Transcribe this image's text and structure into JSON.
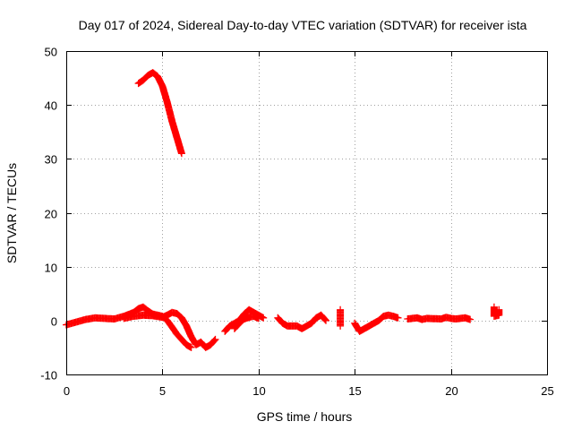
{
  "chart_data": {
    "type": "scatter",
    "title": "Day 017 of 2024, Sidereal Day-to-day VTEC variation (SDTVAR) for receiver ista",
    "xlabel": "GPS time / hours",
    "ylabel": "SDTVAR / TECUs",
    "xlim": [
      0,
      25
    ],
    "ylim": [
      -10,
      50
    ],
    "xticks": [
      "0",
      "5",
      "10",
      "15",
      "20",
      "25"
    ],
    "yticks": [
      "-10",
      "0",
      "10",
      "20",
      "30",
      "40",
      "50"
    ],
    "grid": true,
    "marker": "+",
    "color": "#ff0000",
    "series": [
      {
        "name": "track-high",
        "segments": [
          [
            [
              3.75,
              44.0
            ],
            [
              4.0,
              44.6
            ],
            [
              4.25,
              45.5
            ],
            [
              4.5,
              46.0
            ],
            [
              4.75,
              45.3
            ],
            [
              5.0,
              43.5
            ],
            [
              5.25,
              40.5
            ],
            [
              5.5,
              37.0
            ],
            [
              5.75,
              34.0
            ],
            [
              6.0,
              31.0
            ]
          ]
        ]
      },
      {
        "name": "track-a",
        "segments": [
          [
            [
              0.0,
              -0.8
            ],
            [
              0.5,
              -0.3
            ],
            [
              1.0,
              0.2
            ],
            [
              1.5,
              0.5
            ],
            [
              2.0,
              0.4
            ],
            [
              2.5,
              0.3
            ],
            [
              3.0,
              0.8
            ],
            [
              3.5,
              1.5
            ],
            [
              3.75,
              2.2
            ],
            [
              4.0,
              2.5
            ],
            [
              4.25,
              1.8
            ],
            [
              4.5,
              1.2
            ],
            [
              4.75,
              1.0
            ],
            [
              5.0,
              0.8
            ],
            [
              5.25,
              0.0
            ],
            [
              5.5,
              -1.2
            ],
            [
              5.75,
              -2.5
            ],
            [
              6.0,
              -3.5
            ],
            [
              6.25,
              -4.5
            ],
            [
              6.5,
              -5.0
            ]
          ]
        ]
      },
      {
        "name": "track-b",
        "segments": [
          [
            [
              3.0,
              0.4
            ],
            [
              3.5,
              0.8
            ],
            [
              4.0,
              1.0
            ],
            [
              4.5,
              0.9
            ],
            [
              5.0,
              0.6
            ],
            [
              5.25,
              1.0
            ],
            [
              5.5,
              1.5
            ],
            [
              5.75,
              1.3
            ],
            [
              6.0,
              0.5
            ],
            [
              6.25,
              -1.0
            ],
            [
              6.5,
              -3.0
            ],
            [
              6.75,
              -4.5
            ],
            [
              7.0,
              -4.0
            ],
            [
              7.25,
              -5.0
            ],
            [
              7.5,
              -4.5
            ],
            [
              7.75,
              -3.5
            ]
          ],
          [
            [
              8.25,
              -2.0
            ],
            [
              8.5,
              -1.0
            ],
            [
              9.0,
              0.0
            ],
            [
              9.25,
              1.2
            ],
            [
              9.5,
              2.0
            ],
            [
              9.75,
              1.5
            ],
            [
              10.0,
              1.0
            ],
            [
              10.25,
              0.5
            ]
          ]
        ]
      },
      {
        "name": "track-c",
        "segments": [
          [
            [
              8.75,
              -1.5
            ],
            [
              9.0,
              -0.5
            ],
            [
              9.25,
              0.3
            ],
            [
              9.5,
              0.6
            ],
            [
              9.75,
              0.8
            ],
            [
              10.0,
              0.4
            ]
          ],
          [
            [
              11.0,
              0.5
            ],
            [
              11.25,
              -0.5
            ],
            [
              11.5,
              -1.0
            ],
            [
              12.0,
              -1.0
            ],
            [
              12.25,
              -1.5
            ],
            [
              12.5,
              -1.0
            ],
            [
              12.75,
              -0.5
            ],
            [
              13.0,
              0.5
            ],
            [
              13.25,
              1.0
            ],
            [
              13.5,
              0.0
            ]
          ],
          [
            [
              14.25,
              2.0
            ],
            [
              14.25,
              -1.0
            ]
          ],
          [
            [
              15.0,
              -0.5
            ],
            [
              15.25,
              -2.0
            ],
            [
              15.5,
              -1.5
            ],
            [
              15.75,
              -1.0
            ],
            [
              16.0,
              -0.5
            ],
            [
              16.25,
              0.0
            ],
            [
              16.5,
              0.8
            ],
            [
              16.75,
              1.0
            ],
            [
              17.0,
              0.8
            ],
            [
              17.25,
              0.5
            ]
          ],
          [
            [
              17.75,
              0.3
            ],
            [
              18.25,
              0.5
            ],
            [
              18.5,
              0.2
            ],
            [
              18.75,
              0.4
            ],
            [
              19.5,
              0.3
            ],
            [
              19.75,
              0.6
            ],
            [
              20.0,
              0.4
            ],
            [
              20.25,
              0.3
            ],
            [
              20.75,
              0.5
            ],
            [
              21.0,
              0.2
            ]
          ],
          [
            [
              22.25,
              2.5
            ],
            [
              22.25,
              0.8
            ],
            [
              22.5,
              1.0
            ],
            [
              22.5,
              2.0
            ]
          ]
        ]
      }
    ]
  }
}
